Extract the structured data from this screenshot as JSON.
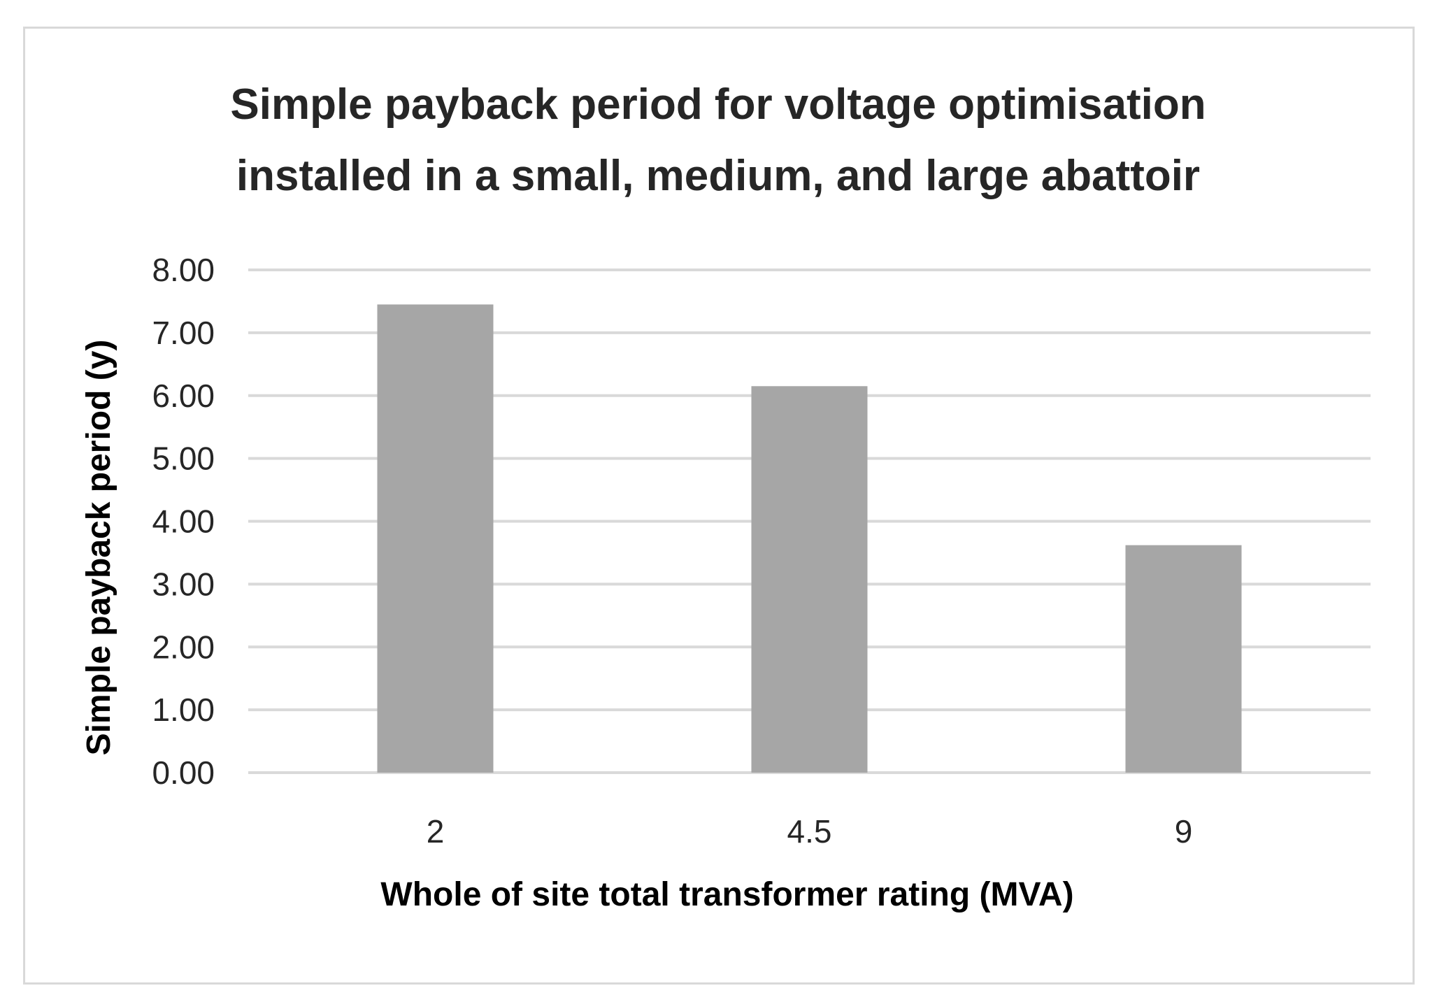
{
  "chart_data": {
    "type": "bar",
    "title": [
      "Simple payback period for voltage optimisation",
      "installed in a small, medium, and large abattoir"
    ],
    "xlabel": "Whole of site total transformer rating (MVA)",
    "ylabel": "Simple payback period (y)",
    "categories": [
      "2",
      "4.5",
      "9"
    ],
    "values": [
      7.45,
      6.15,
      3.62
    ],
    "ylim": [
      0,
      8
    ],
    "yticks": [
      "0.00",
      "1.00",
      "2.00",
      "3.00",
      "4.00",
      "5.00",
      "6.00",
      "7.00",
      "8.00"
    ],
    "grid": true,
    "legend": "none",
    "bar_color": "#a6a6a6"
  }
}
